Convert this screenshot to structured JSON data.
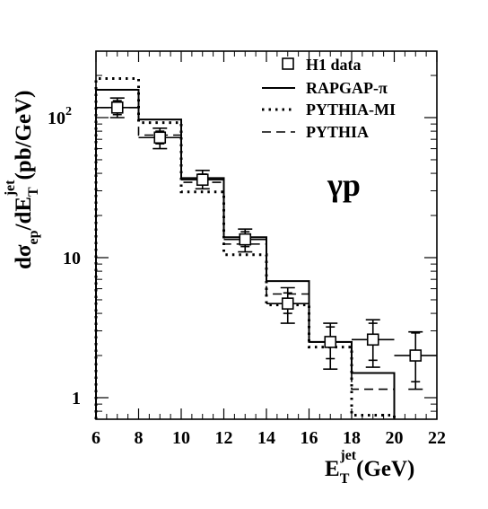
{
  "chart_data": {
    "type": "scatter",
    "xlabel": "E_T^jet (GeV)",
    "ylabel": "dσ_ep/dE_T^jet (pb/GeV)",
    "xlim": [
      6,
      22
    ],
    "ylim": [
      0.7,
      290
    ],
    "yscale": "log",
    "x_ticks": [
      6,
      8,
      10,
      12,
      14,
      16,
      18,
      20,
      22
    ],
    "y_ticks": [
      {
        "value": 1,
        "label": "1"
      },
      {
        "value": 10,
        "label": "10"
      },
      {
        "value": 100,
        "label": "10",
        "sup": "2"
      }
    ],
    "annotation": "γp",
    "legend": {
      "placement": "top-right",
      "entries": [
        {
          "label": "H1 data",
          "style": "marker"
        },
        {
          "label": "RAPGAP-π",
          "style": "solid"
        },
        {
          "label": "PYTHIA-MI",
          "style": "dotted"
        },
        {
          "label": "PYTHIA",
          "style": "dashed"
        }
      ]
    },
    "bin_edges": [
      6,
      8,
      10,
      12,
      14,
      16,
      18,
      20
    ],
    "series": [
      {
        "name": "H1 data",
        "style": "marker",
        "x": [
          7,
          9,
          11,
          13,
          15,
          17,
          19,
          21
        ],
        "xerr": [
          1,
          1,
          1,
          1,
          1,
          1,
          1,
          1
        ],
        "y": [
          118,
          72,
          36,
          13.5,
          4.7,
          2.5,
          2.6,
          2.0
        ],
        "yerr_stat": [
          [
            105,
            132
          ],
          [
            65,
            80
          ],
          [
            33,
            39.5
          ],
          [
            12,
            15.3
          ],
          [
            4.0,
            5.6
          ],
          [
            1.9,
            3.2
          ],
          [
            1.85,
            3.4
          ],
          [
            1.3,
            2.9
          ]
        ],
        "yerr_tot": [
          [
            100,
            138
          ],
          [
            60,
            84
          ],
          [
            31,
            42
          ],
          [
            11,
            16
          ],
          [
            3.4,
            6.1
          ],
          [
            1.6,
            3.4
          ],
          [
            1.65,
            3.6
          ],
          [
            1.15,
            2.95
          ]
        ]
      },
      {
        "name": "RAPGAP-π",
        "style": "solid",
        "values": [
          158,
          97,
          37,
          14,
          6.8,
          2.5,
          1.5
        ]
      },
      {
        "name": "PYTHIA-MI",
        "style": "dotted",
        "values": [
          190,
          92,
          29.5,
          10.5,
          4.6,
          2.3,
          0.75
        ]
      },
      {
        "name": "PYTHIA",
        "style": "dashed",
        "values": [
          118,
          75,
          34.5,
          12.5,
          5.5,
          2.5,
          1.15
        ]
      }
    ]
  }
}
